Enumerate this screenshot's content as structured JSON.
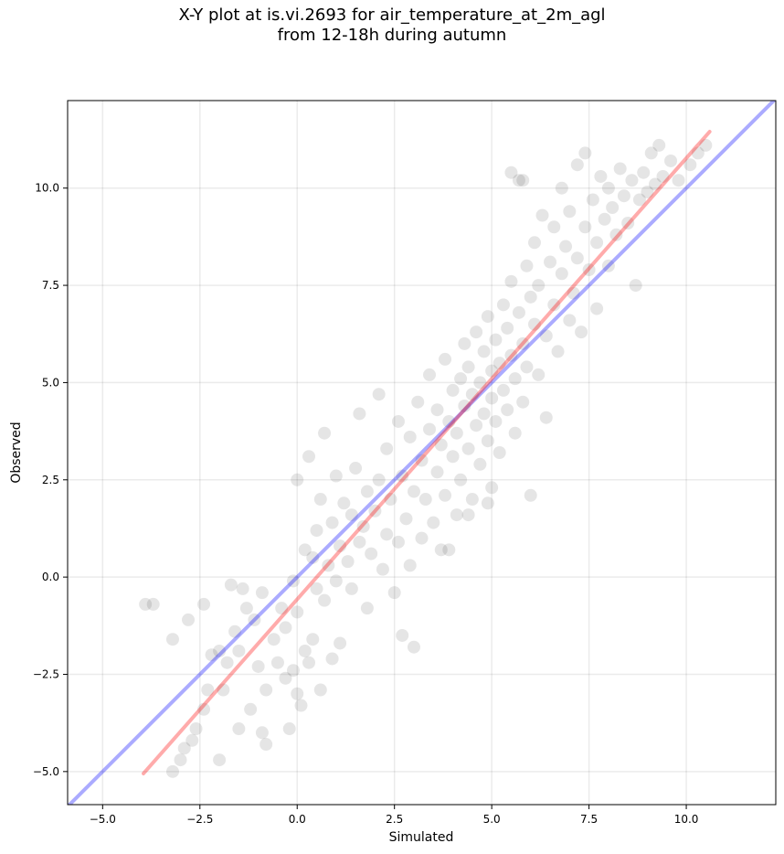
{
  "chart_data": {
    "type": "scatter",
    "title_lines": [
      "X-Y plot at is.vi.2693 for air_temperature_at_2m_agl",
      "from 12-18h during autumn"
    ],
    "xlabel": "Simulated",
    "ylabel": "Observed",
    "xlim": [
      -5.9,
      12.3
    ],
    "ylim": [
      -5.85,
      12.25
    ],
    "x_ticks": [
      -5.0,
      -2.5,
      0.0,
      2.5,
      5.0,
      7.5,
      10.0
    ],
    "x_tick_labels": [
      "−5.0",
      "−2.5",
      "0.0",
      "2.5",
      "5.0",
      "7.5",
      "10.0"
    ],
    "y_ticks": [
      -5.0,
      -2.5,
      0.0,
      2.5,
      5.0,
      7.5,
      10.0
    ],
    "y_tick_labels": [
      "−5.0",
      "−2.5",
      "0.0",
      "2.5",
      "5.0",
      "7.5",
      "10.0"
    ],
    "grid": true,
    "legend": "none",
    "series": [
      {
        "kind": "points",
        "color": "#000000",
        "opacity": 0.1,
        "points": [
          [
            -3.9,
            -0.7
          ],
          [
            -3.7,
            -0.7
          ],
          [
            -3.2,
            -1.6
          ],
          [
            -3.2,
            -5.0
          ],
          [
            -3.0,
            -4.7
          ],
          [
            -2.9,
            -4.4
          ],
          [
            -2.7,
            -4.2
          ],
          [
            -2.6,
            -3.9
          ],
          [
            -2.8,
            -1.1
          ],
          [
            -2.4,
            -0.7
          ],
          [
            -2.4,
            -3.4
          ],
          [
            -2.3,
            -2.9
          ],
          [
            -2.2,
            -2.0
          ],
          [
            -2.0,
            -1.9
          ],
          [
            -2.0,
            -4.7
          ],
          [
            -1.9,
            -2.9
          ],
          [
            -1.8,
            -2.2
          ],
          [
            -1.7,
            -0.2
          ],
          [
            -1.6,
            -1.4
          ],
          [
            -1.5,
            -1.9
          ],
          [
            -1.5,
            -3.9
          ],
          [
            -1.4,
            -0.3
          ],
          [
            -1.3,
            -0.8
          ],
          [
            -1.2,
            -3.4
          ],
          [
            -1.1,
            -1.1
          ],
          [
            -1.0,
            -2.3
          ],
          [
            -0.9,
            -0.4
          ],
          [
            -0.9,
            -4.0
          ],
          [
            -0.8,
            -2.9
          ],
          [
            -0.8,
            -4.3
          ],
          [
            -0.6,
            -1.6
          ],
          [
            -0.5,
            -2.2
          ],
          [
            -0.4,
            -0.8
          ],
          [
            -0.3,
            -1.3
          ],
          [
            -0.3,
            -2.6
          ],
          [
            -0.2,
            -3.9
          ],
          [
            -0.1,
            -0.1
          ],
          [
            -0.1,
            -2.4
          ],
          [
            0.0,
            -0.9
          ],
          [
            0.0,
            -3.0
          ],
          [
            0.0,
            2.5
          ],
          [
            0.1,
            -3.3
          ],
          [
            0.2,
            0.7
          ],
          [
            0.2,
            -1.9
          ],
          [
            0.3,
            -2.2
          ],
          [
            0.3,
            3.1
          ],
          [
            0.4,
            0.5
          ],
          [
            0.4,
            -1.6
          ],
          [
            0.5,
            -0.3
          ],
          [
            0.5,
            1.2
          ],
          [
            0.6,
            -2.9
          ],
          [
            0.6,
            2.0
          ],
          [
            0.7,
            -0.6
          ],
          [
            0.7,
            3.7
          ],
          [
            0.8,
            0.3
          ],
          [
            0.9,
            -2.1
          ],
          [
            0.9,
            1.4
          ],
          [
            1.0,
            -0.1
          ],
          [
            1.0,
            2.6
          ],
          [
            1.1,
            -1.7
          ],
          [
            1.1,
            0.8
          ],
          [
            1.2,
            1.9
          ],
          [
            1.3,
            0.4
          ],
          [
            1.4,
            -0.3
          ],
          [
            1.4,
            1.6
          ],
          [
            1.5,
            2.8
          ],
          [
            1.6,
            0.9
          ],
          [
            1.6,
            4.2
          ],
          [
            1.7,
            1.3
          ],
          [
            1.8,
            2.2
          ],
          [
            1.8,
            -0.8
          ],
          [
            1.9,
            0.6
          ],
          [
            2.0,
            1.7
          ],
          [
            2.1,
            2.5
          ],
          [
            2.2,
            0.2
          ],
          [
            2.3,
            1.1
          ],
          [
            2.3,
            3.3
          ],
          [
            2.4,
            2.0
          ],
          [
            2.5,
            -0.4
          ],
          [
            2.6,
            0.9
          ],
          [
            2.6,
            4.0
          ],
          [
            2.7,
            -1.5
          ],
          [
            2.7,
            2.6
          ],
          [
            2.8,
            1.5
          ],
          [
            2.9,
            3.6
          ],
          [
            2.9,
            0.3
          ],
          [
            3.0,
            2.2
          ],
          [
            3.0,
            -1.8
          ],
          [
            3.1,
            4.5
          ],
          [
            3.2,
            1.0
          ],
          [
            3.2,
            3.0
          ],
          [
            3.3,
            2.0
          ],
          [
            3.4,
            5.2
          ],
          [
            3.4,
            3.8
          ],
          [
            3.5,
            1.4
          ],
          [
            3.6,
            2.7
          ],
          [
            3.6,
            4.3
          ],
          [
            3.7,
            0.7
          ],
          [
            3.7,
            3.4
          ],
          [
            3.8,
            5.6
          ],
          [
            3.8,
            2.1
          ],
          [
            3.9,
            4.0
          ],
          [
            4.0,
            3.1
          ],
          [
            4.0,
            4.8
          ],
          [
            4.1,
            1.6
          ],
          [
            4.1,
            3.7
          ],
          [
            4.2,
            5.1
          ],
          [
            4.2,
            2.5
          ],
          [
            4.3,
            4.4
          ],
          [
            4.3,
            6.0
          ],
          [
            4.4,
            3.3
          ],
          [
            4.4,
            5.4
          ],
          [
            4.5,
            2.0
          ],
          [
            4.5,
            4.7
          ],
          [
            4.6,
            3.9
          ],
          [
            4.6,
            6.3
          ],
          [
            4.7,
            5.0
          ],
          [
            4.7,
            2.9
          ],
          [
            4.8,
            4.2
          ],
          [
            4.8,
            5.8
          ],
          [
            4.9,
            3.5
          ],
          [
            4.9,
            6.7
          ],
          [
            5.0,
            4.6
          ],
          [
            5.0,
            5.3
          ],
          [
            5.0,
            2.3
          ],
          [
            5.1,
            4.0
          ],
          [
            5.1,
            6.1
          ],
          [
            5.2,
            5.5
          ],
          [
            5.2,
            3.2
          ],
          [
            5.3,
            4.8
          ],
          [
            5.3,
            7.0
          ],
          [
            5.4,
            6.4
          ],
          [
            5.4,
            4.3
          ],
          [
            5.5,
            5.7
          ],
          [
            5.5,
            7.6
          ],
          [
            5.6,
            3.7
          ],
          [
            5.6,
            5.1
          ],
          [
            5.7,
            6.8
          ],
          [
            5.7,
            10.2
          ],
          [
            5.8,
            4.5
          ],
          [
            5.8,
            6.0
          ],
          [
            5.9,
            8.0
          ],
          [
            5.9,
            5.4
          ],
          [
            6.0,
            7.2
          ],
          [
            6.0,
            2.1
          ],
          [
            6.1,
            6.5
          ],
          [
            6.1,
            8.6
          ],
          [
            6.2,
            5.2
          ],
          [
            6.2,
            7.5
          ],
          [
            6.3,
            9.3
          ],
          [
            6.4,
            6.2
          ],
          [
            6.4,
            4.1
          ],
          [
            6.5,
            8.1
          ],
          [
            6.6,
            7.0
          ],
          [
            6.6,
            9.0
          ],
          [
            6.7,
            5.8
          ],
          [
            6.8,
            7.8
          ],
          [
            6.8,
            10.0
          ],
          [
            6.9,
            8.5
          ],
          [
            7.0,
            6.6
          ],
          [
            7.0,
            9.4
          ],
          [
            7.1,
            7.3
          ],
          [
            7.2,
            10.6
          ],
          [
            7.2,
            8.2
          ],
          [
            7.3,
            6.3
          ],
          [
            7.4,
            9.0
          ],
          [
            7.4,
            10.9
          ],
          [
            7.5,
            7.9
          ],
          [
            7.6,
            9.7
          ],
          [
            7.7,
            8.6
          ],
          [
            7.7,
            6.9
          ],
          [
            7.8,
            10.3
          ],
          [
            7.9,
            9.2
          ],
          [
            8.0,
            8.0
          ],
          [
            8.0,
            10.0
          ],
          [
            8.1,
            9.5
          ],
          [
            8.2,
            8.8
          ],
          [
            8.3,
            10.5
          ],
          [
            8.4,
            9.8
          ],
          [
            8.5,
            9.1
          ],
          [
            8.6,
            10.2
          ],
          [
            8.7,
            7.5
          ],
          [
            8.8,
            9.7
          ],
          [
            8.9,
            10.4
          ],
          [
            9.0,
            9.9
          ],
          [
            9.1,
            10.9
          ],
          [
            9.2,
            10.1
          ],
          [
            9.3,
            11.1
          ],
          [
            9.4,
            10.3
          ],
          [
            9.6,
            10.7
          ],
          [
            9.8,
            10.2
          ],
          [
            10.1,
            10.6
          ],
          [
            10.3,
            10.9
          ],
          [
            10.5,
            11.1
          ],
          [
            5.5,
            10.4
          ],
          [
            5.8,
            10.2
          ],
          [
            4.4,
            1.6
          ],
          [
            4.9,
            1.9
          ],
          [
            3.9,
            0.7
          ],
          [
            2.1,
            4.7
          ]
        ]
      },
      {
        "kind": "line",
        "name": "",
        "color": "#0000ff",
        "x": [
          -5.9,
          12.3
        ],
        "y": [
          -5.9,
          12.3
        ]
      },
      {
        "kind": "line",
        "name": "",
        "color": "#ff0000",
        "x": [
          -3.95,
          10.6
        ],
        "y": [
          -5.05,
          11.45
        ]
      }
    ]
  }
}
